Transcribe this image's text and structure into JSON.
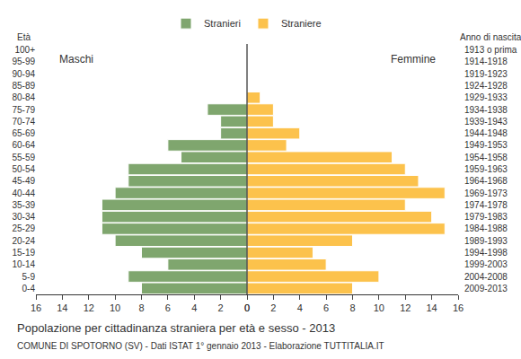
{
  "chart_data": {
    "type": "bar",
    "orientation": "horizontal",
    "title": "Popolazione per cittadinanza straniera per età e sesso - 2013",
    "subtitle": "COMUNE DI SPOTORNO (SV) - Dati ISTAT 1° gennaio 2013 - Elaborazione TUTTITALIA.IT",
    "y_label": "Età",
    "y2_label": "Anno di nascita",
    "annotations": [
      "Maschi",
      "Femmine"
    ],
    "categories": [
      "0-4",
      "5-9",
      "10-14",
      "15-19",
      "20-24",
      "25-29",
      "30-34",
      "35-39",
      "40-44",
      "45-49",
      "50-54",
      "55-59",
      "60-64",
      "65-69",
      "70-74",
      "75-79",
      "80-84",
      "85-89",
      "90-94",
      "95-99",
      "100+"
    ],
    "birth_years": [
      "2009-2013",
      "2004-2008",
      "1999-2003",
      "1994-1998",
      "1989-1993",
      "1984-1988",
      "1979-1983",
      "1974-1978",
      "1969-1973",
      "1964-1968",
      "1959-1963",
      "1954-1958",
      "1949-1953",
      "1944-1948",
      "1939-1943",
      "1934-1938",
      "1929-1933",
      "1924-1928",
      "1919-1923",
      "1914-1918",
      "1913 o prima"
    ],
    "series": [
      {
        "name": "Stranieri",
        "color": "#7fa66e",
        "values": [
          8,
          9,
          6,
          8,
          10,
          11,
          11,
          11,
          10,
          9,
          9,
          5,
          6,
          2,
          2,
          3,
          0,
          0,
          0,
          0,
          0
        ]
      },
      {
        "name": "Straniere",
        "color": "#fcc24c",
        "values": [
          8,
          10,
          6,
          5,
          8,
          15,
          14,
          12,
          15,
          13,
          12,
          11,
          3,
          4,
          2,
          2,
          1,
          0,
          0,
          0,
          0
        ]
      }
    ],
    "xlim": [
      0,
      16
    ],
    "xticks": [
      0,
      2,
      4,
      6,
      8,
      10,
      12,
      14,
      16
    ],
    "grid": false,
    "legend": "top"
  }
}
